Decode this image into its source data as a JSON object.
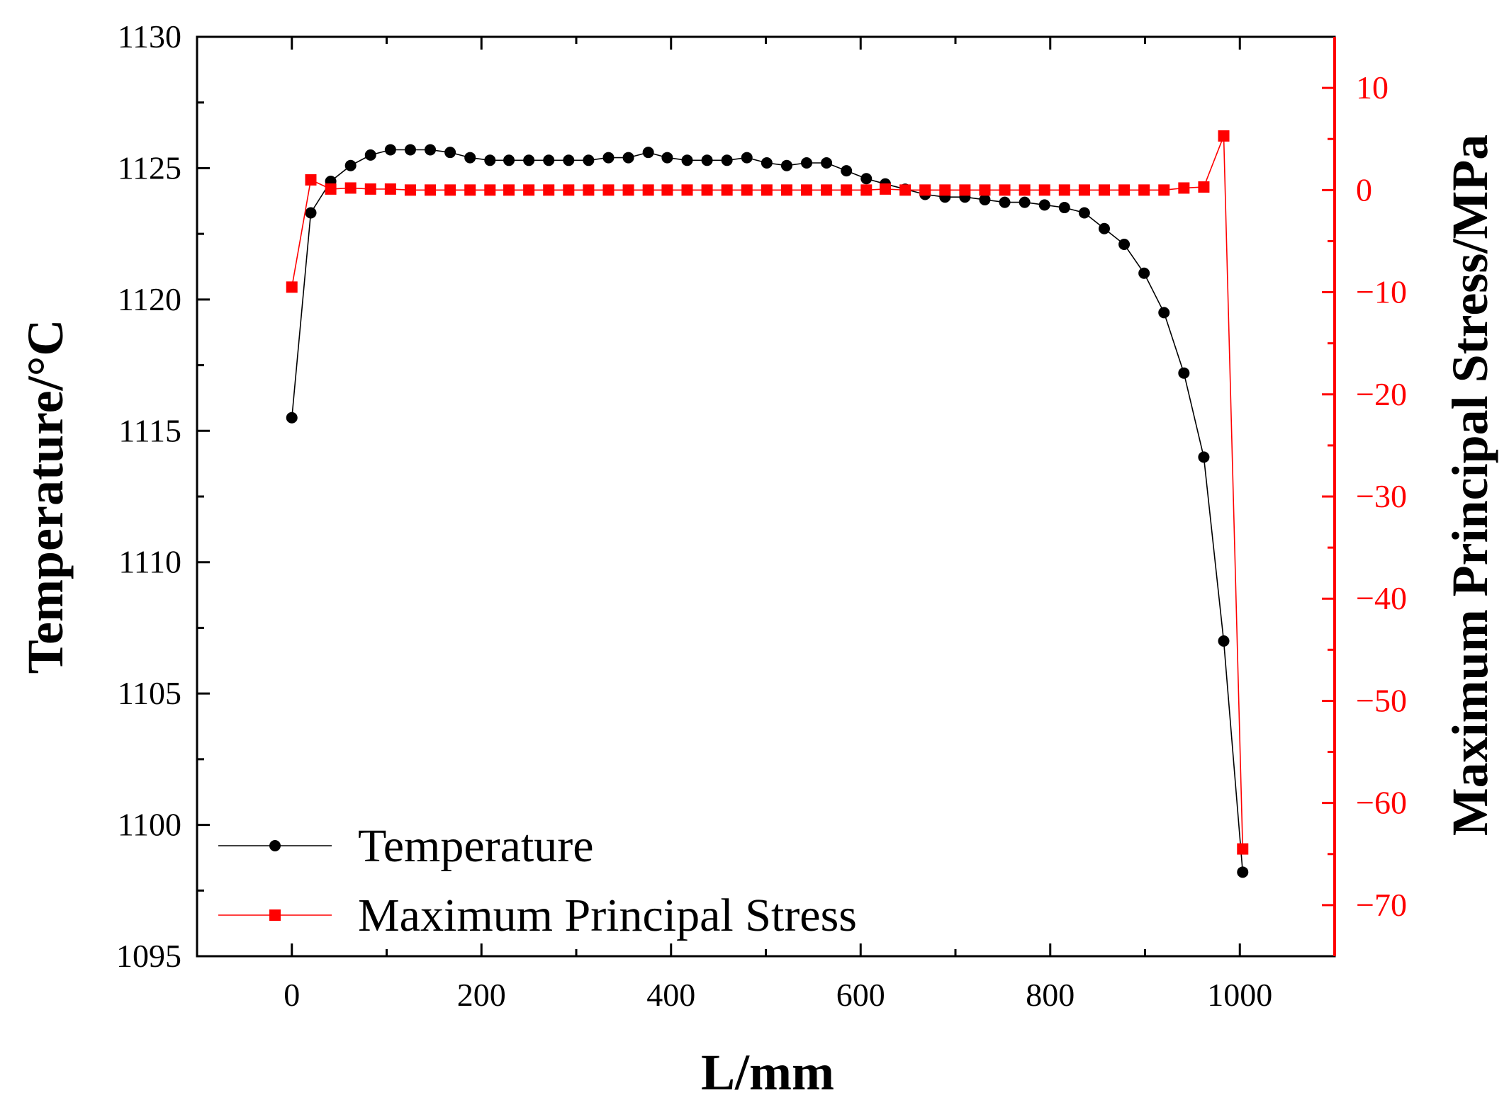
{
  "chart_data": {
    "type": "line",
    "title": "",
    "xlabel": "L/mm",
    "ylabel_left": "Temperature/°C",
    "ylabel_right": "Maximum Principal Stress/MPa",
    "xlim": [
      -100,
      1100
    ],
    "ylim_left": [
      1095,
      1130
    ],
    "ylim_right": [
      -75,
      15
    ],
    "x_ticks": [
      0,
      200,
      400,
      600,
      800,
      1000
    ],
    "y_left_ticks": [
      1095,
      1100,
      1105,
      1110,
      1115,
      1120,
      1125,
      1130
    ],
    "y_right_ticks": [
      -70,
      -60,
      -50,
      -40,
      -30,
      -20,
      -10,
      0,
      10
    ],
    "x_tick_labels": [
      "0",
      "200",
      "400",
      "600",
      "800",
      "1000"
    ],
    "y_left_tick_labels": [
      "1095",
      "1100",
      "1105",
      "1110",
      "1115",
      "1120",
      "1125",
      "1130"
    ],
    "y_right_tick_labels": [
      "−70",
      "−60",
      "−50",
      "−40",
      "−30",
      "−20",
      "−10",
      "0",
      "10"
    ],
    "legend_position": "bottom-left",
    "series": [
      {
        "name": "Temperature",
        "axis": "left",
        "color": "#000000",
        "marker": "circle",
        "x": [
          0,
          20,
          41,
          62,
          83,
          104,
          125,
          146,
          167,
          188,
          209,
          229,
          250,
          271,
          292,
          313,
          334,
          355,
          376,
          396,
          417,
          438,
          459,
          480,
          501,
          522,
          543,
          564,
          585,
          606,
          626,
          647,
          668,
          689,
          710,
          731,
          752,
          773,
          794,
          815,
          836,
          857,
          878,
          899,
          920,
          941,
          962,
          983,
          1003
        ],
        "values": [
          1115.5,
          1123.3,
          1124.5,
          1125.1,
          1125.5,
          1125.7,
          1125.7,
          1125.7,
          1125.6,
          1125.4,
          1125.3,
          1125.3,
          1125.3,
          1125.3,
          1125.3,
          1125.3,
          1125.4,
          1125.4,
          1125.6,
          1125.4,
          1125.3,
          1125.3,
          1125.3,
          1125.4,
          1125.2,
          1125.1,
          1125.2,
          1125.2,
          1124.9,
          1124.6,
          1124.4,
          1124.2,
          1124.0,
          1123.9,
          1123.9,
          1123.8,
          1123.7,
          1123.7,
          1123.6,
          1123.5,
          1123.3,
          1122.7,
          1122.1,
          1121.0,
          1119.5,
          1117.2,
          1114.0,
          1107.0,
          1098.2
        ]
      },
      {
        "name": "Maximum Principal Stress",
        "axis": "right",
        "color": "#ff0000",
        "marker": "square",
        "x": [
          0,
          20,
          41,
          62,
          83,
          104,
          125,
          146,
          167,
          188,
          209,
          229,
          250,
          271,
          292,
          313,
          334,
          355,
          376,
          396,
          417,
          438,
          459,
          480,
          501,
          522,
          543,
          564,
          585,
          606,
          626,
          647,
          668,
          689,
          710,
          731,
          752,
          773,
          794,
          815,
          836,
          857,
          878,
          899,
          920,
          941,
          962,
          983,
          1003
        ],
        "values": [
          -9.5,
          1.0,
          0.1,
          0.2,
          0.1,
          0.1,
          0.0,
          0.0,
          0.0,
          0.0,
          0.0,
          0.0,
          0.0,
          0.0,
          0.0,
          0.0,
          0.0,
          0.0,
          0.0,
          0.0,
          0.0,
          0.0,
          0.0,
          0.0,
          0.0,
          0.0,
          0.0,
          0.0,
          0.0,
          0.0,
          0.1,
          0.0,
          0.0,
          0.0,
          0.0,
          0.0,
          0.0,
          0.0,
          0.0,
          0.0,
          0.0,
          0.0,
          0.0,
          0.0,
          0.0,
          0.2,
          0.3,
          5.3,
          -64.5
        ]
      }
    ]
  }
}
